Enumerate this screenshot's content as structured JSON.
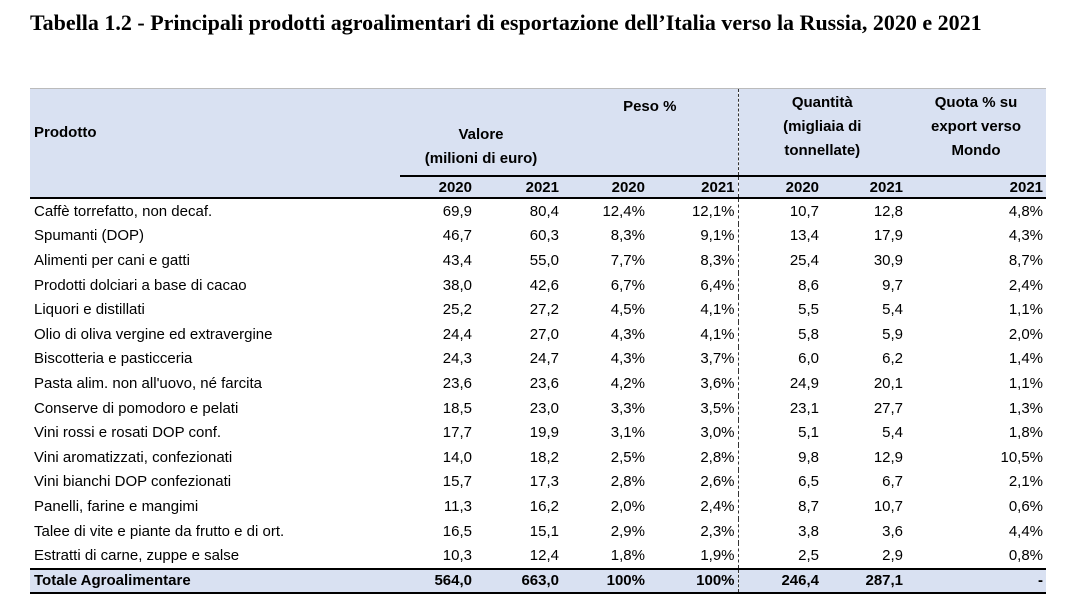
{
  "title": "Tabella 1.2 - Principali prodotti agroalimentari di esportazione dell’Italia verso la Russia, 2020 e 2021",
  "headers": {
    "product": "Prodotto",
    "valore_l1": "Valore",
    "valore_l2": "(milioni di euro)",
    "peso": "Peso %",
    "quantita_l1": "Quantità",
    "quantita_l2": "(migliaia di",
    "quantita_l3": "tonnellate)",
    "quota_l1": "Quota % su",
    "quota_l2": "export verso",
    "quota_l3": "Mondo",
    "years": [
      "2020",
      "2021",
      "2020",
      "2021",
      "2020",
      "2021",
      "2021"
    ]
  },
  "rows": [
    [
      "Caffè torrefatto, non decaf.",
      "69,9",
      "80,4",
      "12,4%",
      "12,1%",
      "10,7",
      "12,8",
      "4,8%"
    ],
    [
      "Spumanti (DOP)",
      "46,7",
      "60,3",
      "8,3%",
      "9,1%",
      "13,4",
      "17,9",
      "4,3%"
    ],
    [
      "Alimenti per cani e gatti",
      "43,4",
      "55,0",
      "7,7%",
      "8,3%",
      "25,4",
      "30,9",
      "8,7%"
    ],
    [
      "Prodotti dolciari a base di cacao",
      "38,0",
      "42,6",
      "6,7%",
      "6,4%",
      "8,6",
      "9,7",
      "2,4%"
    ],
    [
      "Liquori e distillati",
      "25,2",
      "27,2",
      "4,5%",
      "4,1%",
      "5,5",
      "5,4",
      "1,1%"
    ],
    [
      "Olio di oliva vergine ed extravergine",
      "24,4",
      "27,0",
      "4,3%",
      "4,1%",
      "5,8",
      "5,9",
      "2,0%"
    ],
    [
      "Biscotteria e pasticceria",
      "24,3",
      "24,7",
      "4,3%",
      "3,7%",
      "6,0",
      "6,2",
      "1,4%"
    ],
    [
      "Pasta alim. non all'uovo, né farcita",
      "23,6",
      "23,6",
      "4,2%",
      "3,6%",
      "24,9",
      "20,1",
      "1,1%"
    ],
    [
      "Conserve di pomodoro e pelati",
      "18,5",
      "23,0",
      "3,3%",
      "3,5%",
      "23,1",
      "27,7",
      "1,3%"
    ],
    [
      "Vini rossi e rosati DOP conf.",
      "17,7",
      "19,9",
      "3,1%",
      "3,0%",
      "5,1",
      "5,4",
      "1,8%"
    ],
    [
      "Vini aromatizzati, confezionati",
      "14,0",
      "18,2",
      "2,5%",
      "2,8%",
      "9,8",
      "12,9",
      "10,5%"
    ],
    [
      "Vini bianchi DOP confezionati",
      "15,7",
      "17,3",
      "2,8%",
      "2,6%",
      "6,5",
      "6,7",
      "2,1%"
    ],
    [
      "Panelli, farine e mangimi",
      "11,3",
      "16,2",
      "2,0%",
      "2,4%",
      "8,7",
      "10,7",
      "0,6%"
    ],
    [
      "Talee di vite e piante da frutto e di ort.",
      "16,5",
      "15,1",
      "2,9%",
      "2,3%",
      "3,8",
      "3,6",
      "4,4%"
    ],
    [
      "Estratti di carne, zuppe e salse",
      "10,3",
      "12,4",
      "1,8%",
      "1,9%",
      "2,5",
      "2,9",
      "0,8%"
    ]
  ],
  "total": [
    "Totale Agroalimentare",
    "564,0",
    "663,0",
    "100%",
    "100%",
    "246,4",
    "287,1",
    "-"
  ]
}
